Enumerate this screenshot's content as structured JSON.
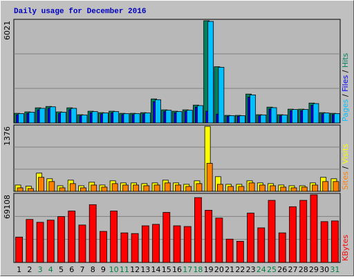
{
  "title": "Daily usage for December 2016",
  "chart_data": [
    {
      "type": "bar",
      "ylim": [
        0,
        6021
      ],
      "legend_separator": " / ",
      "series": [
        {
          "name": "Hits",
          "color": "#00805c",
          "values": [
            565,
            650,
            890,
            970,
            650,
            890,
            485,
            690,
            605,
            690,
            565,
            565,
            605,
            1414,
            770,
            690,
            770,
            1050,
            6021,
            3310,
            445,
            445,
            1700,
            485,
            930,
            485,
            810,
            810,
            1170,
            605,
            565
          ]
        },
        {
          "name": "Files",
          "color": "#0000ff",
          "values": [
            480,
            560,
            770,
            860,
            560,
            780,
            420,
            600,
            530,
            600,
            490,
            490,
            530,
            1250,
            680,
            600,
            680,
            930,
            690,
            520,
            390,
            390,
            1520,
            420,
            820,
            420,
            720,
            720,
            1040,
            530,
            490
          ]
        },
        {
          "name": "Pages",
          "color": "#00c0ff",
          "values": [
            550,
            630,
            860,
            950,
            630,
            860,
            470,
            670,
            590,
            670,
            550,
            550,
            590,
            1370,
            750,
            670,
            750,
            1020,
            5980,
            3280,
            430,
            430,
            1650,
            470,
            900,
            470,
            790,
            790,
            1140,
            590,
            550
          ]
        }
      ]
    },
    {
      "type": "bar",
      "ylim": [
        0,
        1376
      ],
      "legend_separator": " / ",
      "series": [
        {
          "name": "Visits",
          "color": "#ffff00",
          "values": [
            133,
            109,
            385,
            266,
            118,
            236,
            118,
            192,
            133,
            222,
            178,
            178,
            163,
            178,
            236,
            178,
            148,
            222,
            1376,
            310,
            148,
            148,
            222,
            178,
            163,
            133,
            118,
            118,
            178,
            296,
            266
          ]
        },
        {
          "name": "Sites",
          "color": "#ff8000",
          "values": [
            74,
            59,
            296,
            207,
            74,
            163,
            74,
            133,
            89,
            163,
            133,
            133,
            118,
            133,
            178,
            133,
            103,
            163,
            592,
            148,
            103,
            103,
            178,
            133,
            118,
            89,
            74,
            89,
            133,
            207,
            207
          ]
        }
      ]
    },
    {
      "type": "bar",
      "ylim": [
        0,
        69108
      ],
      "categories": [
        "1",
        "2",
        "3",
        "4",
        "5",
        "6",
        "7",
        "8",
        "9",
        "10",
        "11",
        "12",
        "13",
        "14",
        "15",
        "16",
        "17",
        "18",
        "19",
        "20",
        "21",
        "22",
        "23",
        "24",
        "25",
        "26",
        "27",
        "28",
        "29",
        "30",
        "31"
      ],
      "x_label_colors": [
        "#000000",
        "#000000",
        "#008040",
        "#008040",
        "#000000",
        "#000000",
        "#000000",
        "#000000",
        "#000000",
        "#008040",
        "#008040",
        "#000000",
        "#000000",
        "#000000",
        "#000000",
        "#000000",
        "#008040",
        "#008040",
        "#000000",
        "#000000",
        "#000000",
        "#000000",
        "#000000",
        "#008040",
        "#008040",
        "#000000",
        "#000000",
        "#000000",
        "#000000",
        "#000000",
        "#008040"
      ],
      "series": [
        {
          "name": "KBytes",
          "color": "#ff0000",
          "values": [
            25900,
            43900,
            41000,
            43200,
            46800,
            52500,
            38200,
            59000,
            31700,
            52500,
            30200,
            29500,
            37400,
            38900,
            51100,
            37400,
            36700,
            66200,
            53300,
            45300,
            23800,
            21600,
            50400,
            35300,
            63400,
            30200,
            56900,
            63400,
            69108,
            41700,
            42400
          ]
        }
      ]
    }
  ]
}
